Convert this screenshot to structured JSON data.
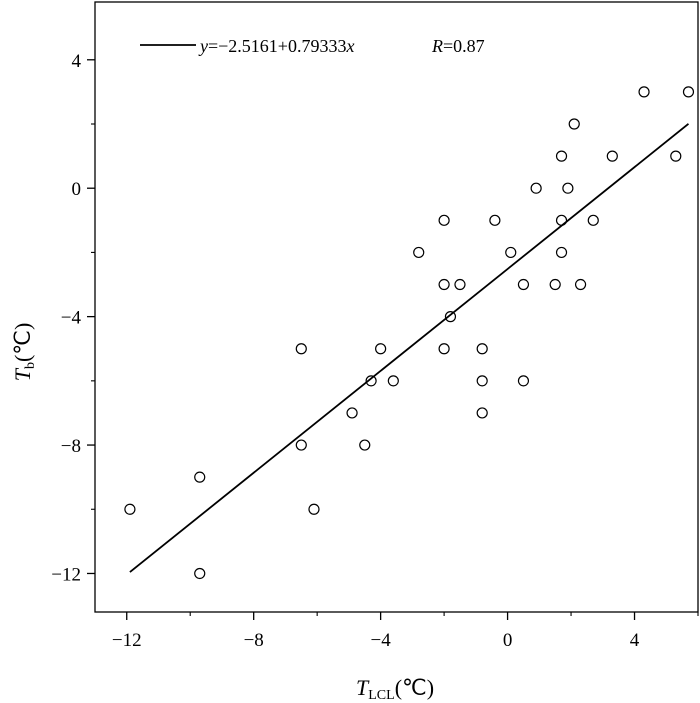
{
  "chart_data": {
    "type": "scatter",
    "xlabel": {
      "main": "T",
      "sub": "LCL",
      "unit": "(℃)"
    },
    "ylabel": {
      "main": "T",
      "sub": "b",
      "unit": "(℃)"
    },
    "xlim": [
      -13,
      6
    ],
    "ylim": [
      -13.2,
      5.8
    ],
    "xticks": [
      -12,
      -8,
      -4,
      0,
      4
    ],
    "yticks": [
      -12,
      -8,
      -4,
      0,
      4
    ],
    "x_tick_labels": [
      "−12",
      "−8",
      "−4",
      "0",
      "4"
    ],
    "y_tick_labels": [
      "−12",
      "−8",
      "−4",
      "0",
      "4"
    ],
    "grid": false,
    "legend": {
      "position": "top-left",
      "y_symbol": "y",
      "equation_body": "=−2.5161+0.79333",
      "x_symbol": "x",
      "r_symbol": "R",
      "r_text": "=0.87"
    },
    "fit_line": {
      "intercept": -2.5161,
      "slope": 0.79333,
      "x_range": [
        -11.9,
        5.7
      ]
    },
    "points": [
      {
        "x": -11.9,
        "y": -10
      },
      {
        "x": -9.7,
        "y": -9
      },
      {
        "x": -9.7,
        "y": -12
      },
      {
        "x": -6.5,
        "y": -5
      },
      {
        "x": -6.5,
        "y": -8
      },
      {
        "x": -6.1,
        "y": -10
      },
      {
        "x": -4.9,
        "y": -7
      },
      {
        "x": -4.5,
        "y": -8
      },
      {
        "x": -4.3,
        "y": -6
      },
      {
        "x": -4.0,
        "y": -5
      },
      {
        "x": -3.6,
        "y": -6
      },
      {
        "x": -2.8,
        "y": -2
      },
      {
        "x": -2.0,
        "y": -1
      },
      {
        "x": -2.0,
        "y": -3
      },
      {
        "x": -2.0,
        "y": -5
      },
      {
        "x": -1.8,
        "y": -4
      },
      {
        "x": -1.5,
        "y": -3
      },
      {
        "x": -0.8,
        "y": -5
      },
      {
        "x": -0.8,
        "y": -6
      },
      {
        "x": -0.8,
        "y": -7
      },
      {
        "x": -0.4,
        "y": -1
      },
      {
        "x": 0.1,
        "y": -2
      },
      {
        "x": 0.5,
        "y": -3
      },
      {
        "x": 0.5,
        "y": -6
      },
      {
        "x": 0.9,
        "y": 0
      },
      {
        "x": 1.5,
        "y": -3
      },
      {
        "x": 1.7,
        "y": 1
      },
      {
        "x": 1.7,
        "y": -1
      },
      {
        "x": 1.7,
        "y": -2
      },
      {
        "x": 1.9,
        "y": 0
      },
      {
        "x": 2.1,
        "y": 2
      },
      {
        "x": 2.3,
        "y": -3
      },
      {
        "x": 2.7,
        "y": -1
      },
      {
        "x": 3.3,
        "y": 1
      },
      {
        "x": 4.3,
        "y": 3
      },
      {
        "x": 5.3,
        "y": 1
      },
      {
        "x": 5.7,
        "y": 3
      }
    ]
  }
}
